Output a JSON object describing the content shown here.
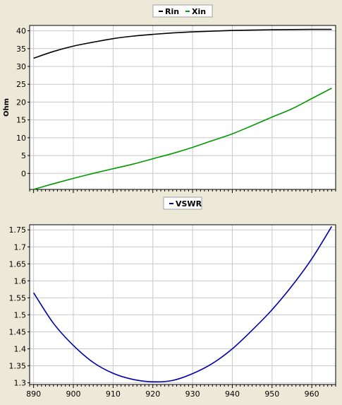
{
  "chart_data": [
    {
      "type": "line",
      "ylabel": "Ohm",
      "xlim": [
        889,
        966
      ],
      "ylim": [
        -4.5,
        41.5
      ],
      "yticks": [
        0,
        5,
        10,
        15,
        20,
        25,
        30,
        35,
        40
      ],
      "grid": true,
      "legend_position": "top-center",
      "series": [
        {
          "name": "Rin",
          "color": "#000000",
          "x": [
            890,
            895,
            900,
            905,
            910,
            915,
            920,
            925,
            930,
            935,
            940,
            945,
            950,
            955,
            960,
            965
          ],
          "values": [
            32.3,
            34.2,
            35.7,
            36.8,
            37.8,
            38.5,
            39.0,
            39.4,
            39.7,
            39.9,
            40.1,
            40.2,
            40.3,
            40.35,
            40.4,
            40.4
          ]
        },
        {
          "name": "Xin",
          "color": "#009900",
          "x": [
            890,
            895,
            900,
            905,
            910,
            915,
            920,
            925,
            930,
            935,
            940,
            945,
            950,
            955,
            960,
            965
          ],
          "values": [
            -4.5,
            -2.9,
            -1.4,
            0.0,
            1.3,
            2.6,
            4.1,
            5.6,
            7.3,
            9.2,
            11.1,
            13.4,
            15.8,
            18.1,
            21.0,
            23.9
          ]
        }
      ]
    },
    {
      "type": "line",
      "xlim": [
        889,
        966
      ],
      "ylim": [
        1.295,
        1.765
      ],
      "xticks": [
        890,
        900,
        910,
        920,
        930,
        940,
        950,
        960
      ],
      "yticks": [
        1.3,
        1.35,
        1.4,
        1.45,
        1.5,
        1.55,
        1.6,
        1.65,
        1.7,
        1.75
      ],
      "grid": true,
      "legend_position": "top-center",
      "series": [
        {
          "name": "VSWR",
          "color": "#0000aa",
          "x": [
            890,
            895,
            900,
            905,
            910,
            915,
            920,
            925,
            930,
            935,
            940,
            945,
            950,
            955,
            960,
            965
          ],
          "values": [
            1.565,
            1.475,
            1.41,
            1.36,
            1.328,
            1.31,
            1.303,
            1.307,
            1.327,
            1.357,
            1.4,
            1.455,
            1.515,
            1.585,
            1.665,
            1.76
          ]
        }
      ]
    }
  ]
}
